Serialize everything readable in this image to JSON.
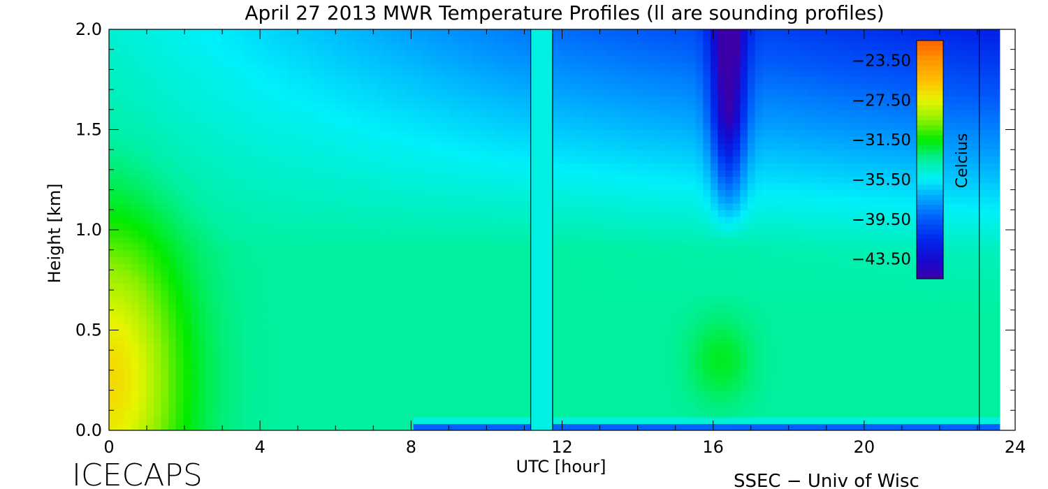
{
  "chart_data": {
    "type": "heatmap",
    "title": "April 27 2013 MWR Temperature Profiles (ll are sounding profiles)",
    "xlabel": "UTC [hour]",
    "ylabel": "Height [km]",
    "xlim": [
      0,
      24
    ],
    "ylim": [
      0.0,
      2.0
    ],
    "x_ticks": [
      0,
      4,
      8,
      12,
      16,
      20,
      24
    ],
    "x_tick_labels": [
      "0",
      "4",
      "8",
      "12",
      "16",
      "20",
      "24"
    ],
    "y_ticks": [
      0.0,
      0.5,
      1.0,
      1.5,
      2.0
    ],
    "y_tick_labels": [
      "0.0",
      "0.5",
      "1.0",
      "1.5",
      "2.0"
    ],
    "sounding_lines_utc": [
      11.17,
      11.75,
      23.05
    ],
    "colorbar": {
      "label": "Celcius",
      "range": [
        -45.5,
        -21.5
      ],
      "tick_values": [
        -23.5,
        -27.5,
        -31.5,
        -35.5,
        -39.5,
        -43.5
      ],
      "tick_labels": [
        "−23.50",
        "−27.50",
        "−31.50",
        "−35.50",
        "−39.50",
        "−43.50"
      ]
    },
    "data_end_utc": 23.6,
    "description_values_celsius": {
      "surface_warm_core_0_1utc_0_0.3km": -24.0,
      "midday_mid_levels": -32.5,
      "late_day_near_surface": -37.5,
      "upper_level_16_5utc_2km": -42.5
    }
  },
  "footer": {
    "left_logo": "ICECAPS",
    "right_credit": "SSEC − Univ of Wisc"
  },
  "colors": {
    "frame": "#000000",
    "background": "#ffffff"
  }
}
